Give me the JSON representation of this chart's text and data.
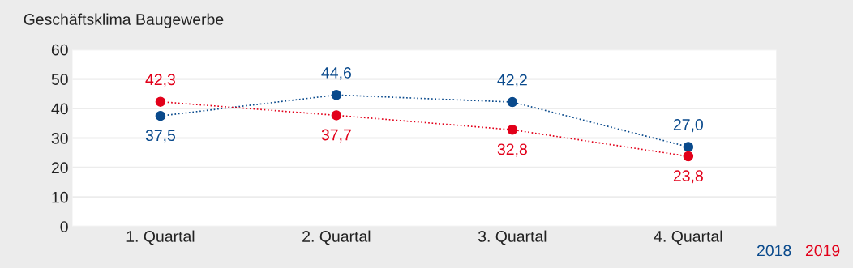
{
  "chart_data": {
    "type": "line",
    "title": "Geschäftsklima Baugewerbe",
    "categories": [
      "1. Quartal",
      "2. Quartal",
      "3. Quartal",
      "4. Quartal"
    ],
    "series": [
      {
        "name": "2018",
        "color": "#0a4a8c",
        "values": [
          37.5,
          44.6,
          42.2,
          27.0
        ],
        "value_labels": [
          "37,5",
          "44,6",
          "42,2",
          "27,0"
        ]
      },
      {
        "name": "2019",
        "color": "#e2001a",
        "values": [
          42.3,
          37.7,
          32.8,
          23.8
        ],
        "value_labels": [
          "42,3",
          "37,7",
          "32,8",
          "23,8"
        ]
      }
    ],
    "ylim": [
      0,
      60
    ],
    "yticks": [
      0,
      10,
      20,
      30,
      40,
      50,
      60
    ],
    "grid": "y",
    "legend": "bottom right",
    "marker": "circle",
    "line_style": "dotted"
  }
}
